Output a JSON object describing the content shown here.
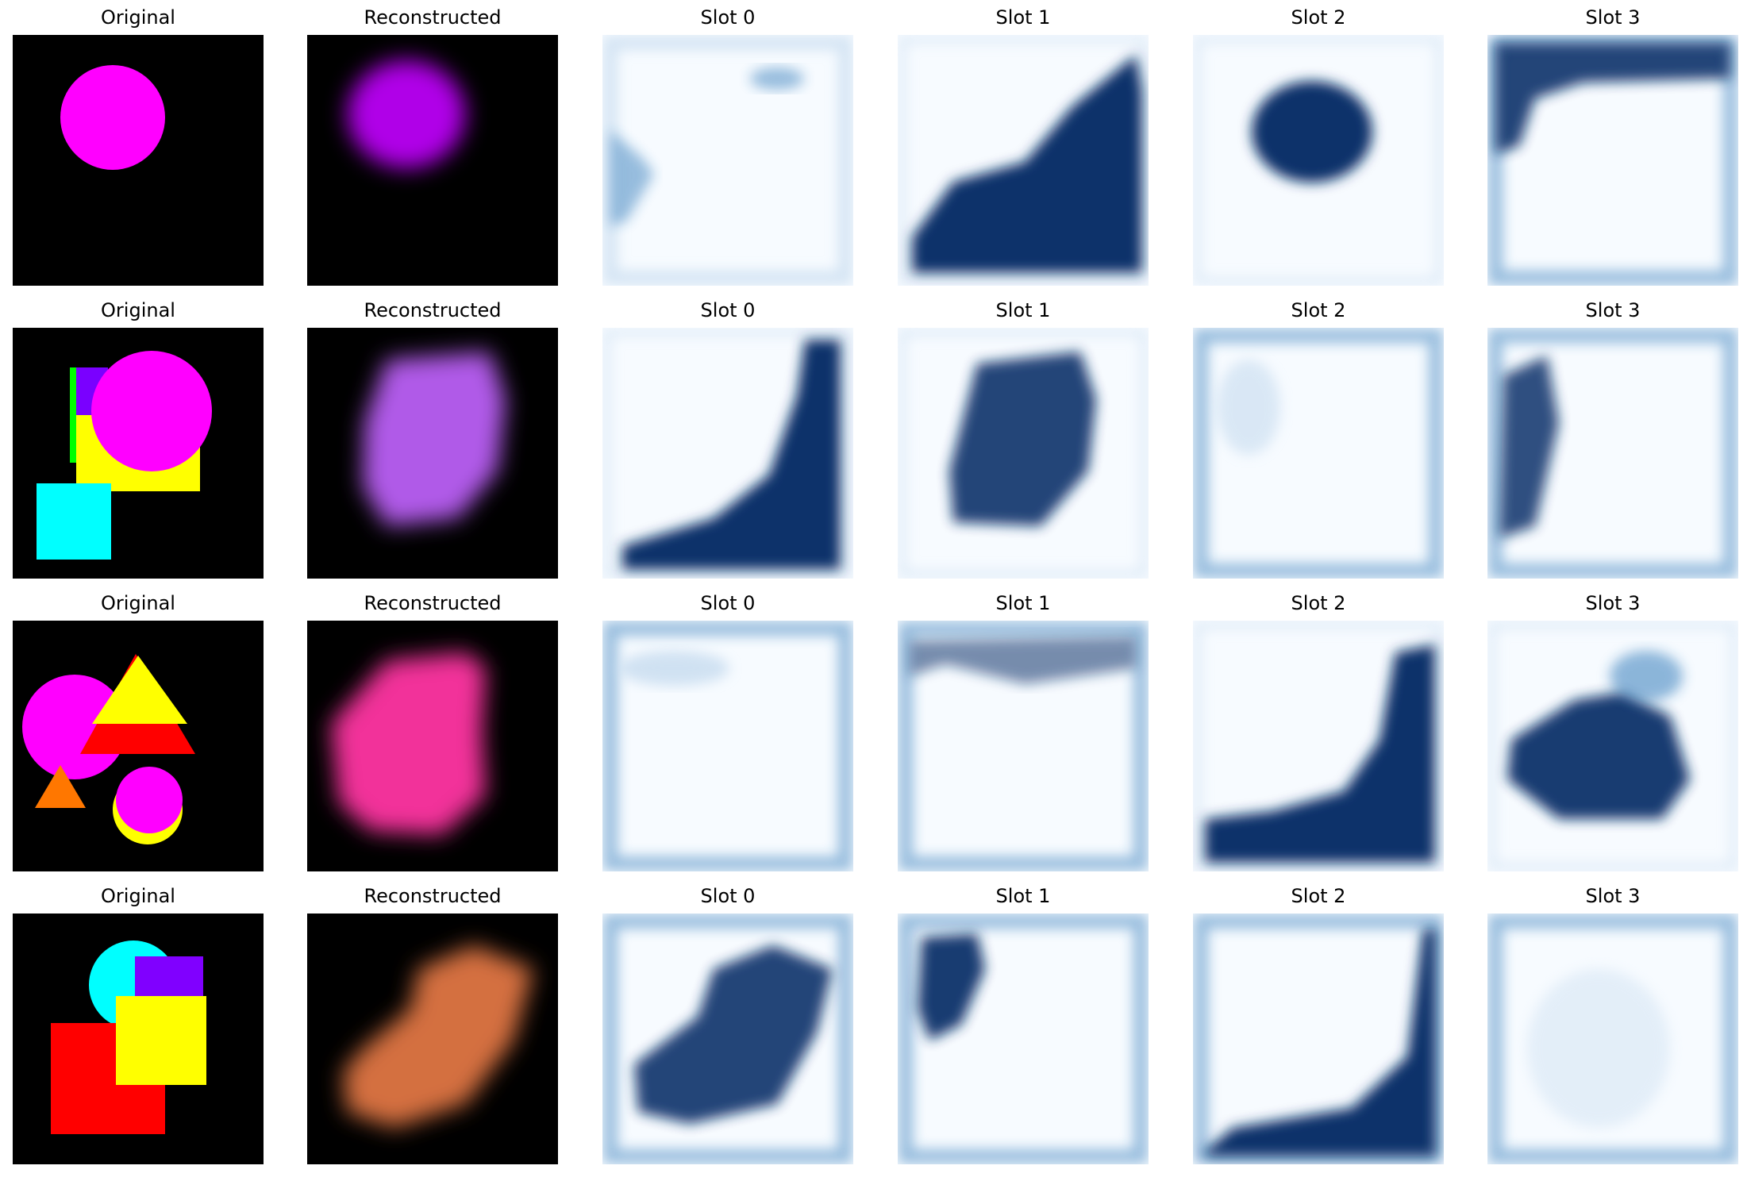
{
  "figure": {
    "rows": [
      {
        "panels": [
          {
            "title": "Original",
            "kind": "original"
          },
          {
            "title": "Reconstructed",
            "kind": "recon",
            "color": "#b000e8"
          },
          {
            "title": "Slot 0",
            "kind": "slot",
            "mask": "r0s0"
          },
          {
            "title": "Slot 1",
            "kind": "slot",
            "mask": "r0s1"
          },
          {
            "title": "Slot 2",
            "kind": "slot",
            "mask": "r0s2"
          },
          {
            "title": "Slot 3",
            "kind": "slot",
            "mask": "r0s3"
          }
        ]
      },
      {
        "panels": [
          {
            "title": "Original",
            "kind": "original"
          },
          {
            "title": "Reconstructed",
            "kind": "recon",
            "color": "#b05ae8"
          },
          {
            "title": "Slot 0",
            "kind": "slot",
            "mask": "r1s0"
          },
          {
            "title": "Slot 1",
            "kind": "slot",
            "mask": "r1s1"
          },
          {
            "title": "Slot 2",
            "kind": "slot",
            "mask": "r1s2"
          },
          {
            "title": "Slot 3",
            "kind": "slot",
            "mask": "r1s3"
          }
        ]
      },
      {
        "panels": [
          {
            "title": "Original",
            "kind": "original"
          },
          {
            "title": "Reconstructed",
            "kind": "recon",
            "color": "#f2309a"
          },
          {
            "title": "Slot 0",
            "kind": "slot",
            "mask": "r2s0"
          },
          {
            "title": "Slot 1",
            "kind": "slot",
            "mask": "r2s1"
          },
          {
            "title": "Slot 2",
            "kind": "slot",
            "mask": "r2s2"
          },
          {
            "title": "Slot 3",
            "kind": "slot",
            "mask": "r2s3"
          }
        ]
      },
      {
        "panels": [
          {
            "title": "Original",
            "kind": "original"
          },
          {
            "title": "Reconstructed",
            "kind": "recon",
            "color": "#d46f40"
          },
          {
            "title": "Slot 0",
            "kind": "slot",
            "mask": "r3s0"
          },
          {
            "title": "Slot 1",
            "kind": "slot",
            "mask": "r3s1"
          },
          {
            "title": "Slot 2",
            "kind": "slot",
            "mask": "r3s2"
          },
          {
            "title": "Slot 3",
            "kind": "slot",
            "mask": "r3s3"
          }
        ]
      }
    ],
    "colors": {
      "background_black": "#000000",
      "mask_dark": "#08306b",
      "mask_mid": "#2171b5",
      "mask_light": "#c6dbef",
      "mask_bg": "#f7fbff"
    }
  }
}
